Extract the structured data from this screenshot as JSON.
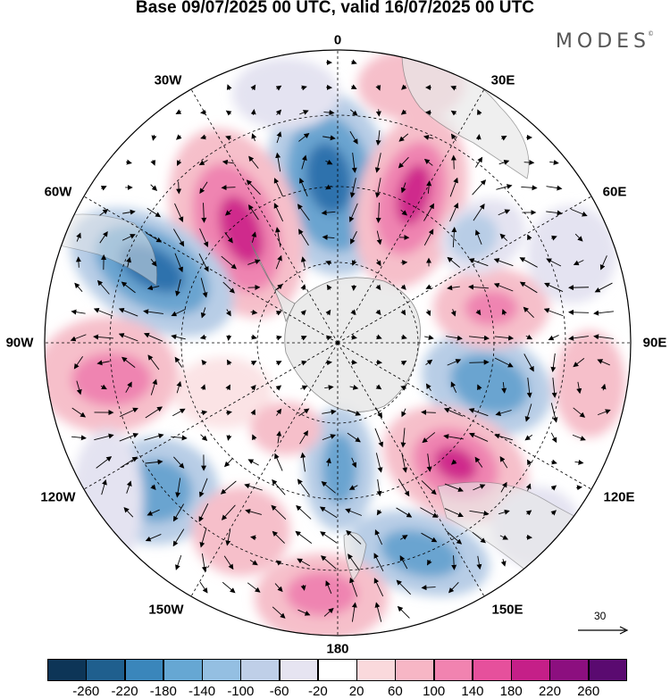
{
  "title": "Base 09/07/2025 00 UTC, valid 16/07/2025 00 UTC",
  "brand": "MODES",
  "brand_mark": "©",
  "longitude_labels": [
    {
      "id": "0",
      "text": "0"
    },
    {
      "id": "30e",
      "text": "30E"
    },
    {
      "id": "60e",
      "text": "60E"
    },
    {
      "id": "90e",
      "text": "90E"
    },
    {
      "id": "120e",
      "text": "120E"
    },
    {
      "id": "150e",
      "text": "150E"
    },
    {
      "id": "180",
      "text": "180"
    },
    {
      "id": "150w",
      "text": "150W"
    },
    {
      "id": "120w",
      "text": "120W"
    },
    {
      "id": "90w",
      "text": "90W"
    },
    {
      "id": "60w",
      "text": "60W"
    },
    {
      "id": "30w",
      "text": "30W"
    }
  ],
  "reference_vector": {
    "label": "30"
  },
  "colorbar": {
    "colors": [
      "#0d3557",
      "#1f5f8e",
      "#3a86bb",
      "#66a7d3",
      "#94bfe2",
      "#bfcfe8",
      "#e6e4f1",
      "#ffffff",
      "#fad9dc",
      "#f7b6c5",
      "#f183b0",
      "#e6509c",
      "#c51f88",
      "#8c0f7f",
      "#5a0a70"
    ],
    "ticks": [
      "-260",
      "-220",
      "-180",
      "-140",
      "-100",
      "-60",
      "-20",
      "20",
      "60",
      "100",
      "140",
      "180",
      "220",
      "260"
    ]
  },
  "map_colors": {
    "neg_strong": "#2f72ad",
    "neg_mid": "#6aa4d0",
    "neg_light": "#b8cde6",
    "neg_faint": "#e4e3f1",
    "pos_faint": "#fbe3e5",
    "pos_light": "#f6bfca",
    "pos_mid": "#ef84b1",
    "pos_strong": "#cf2a8c",
    "land": "#e8e8e8"
  }
}
